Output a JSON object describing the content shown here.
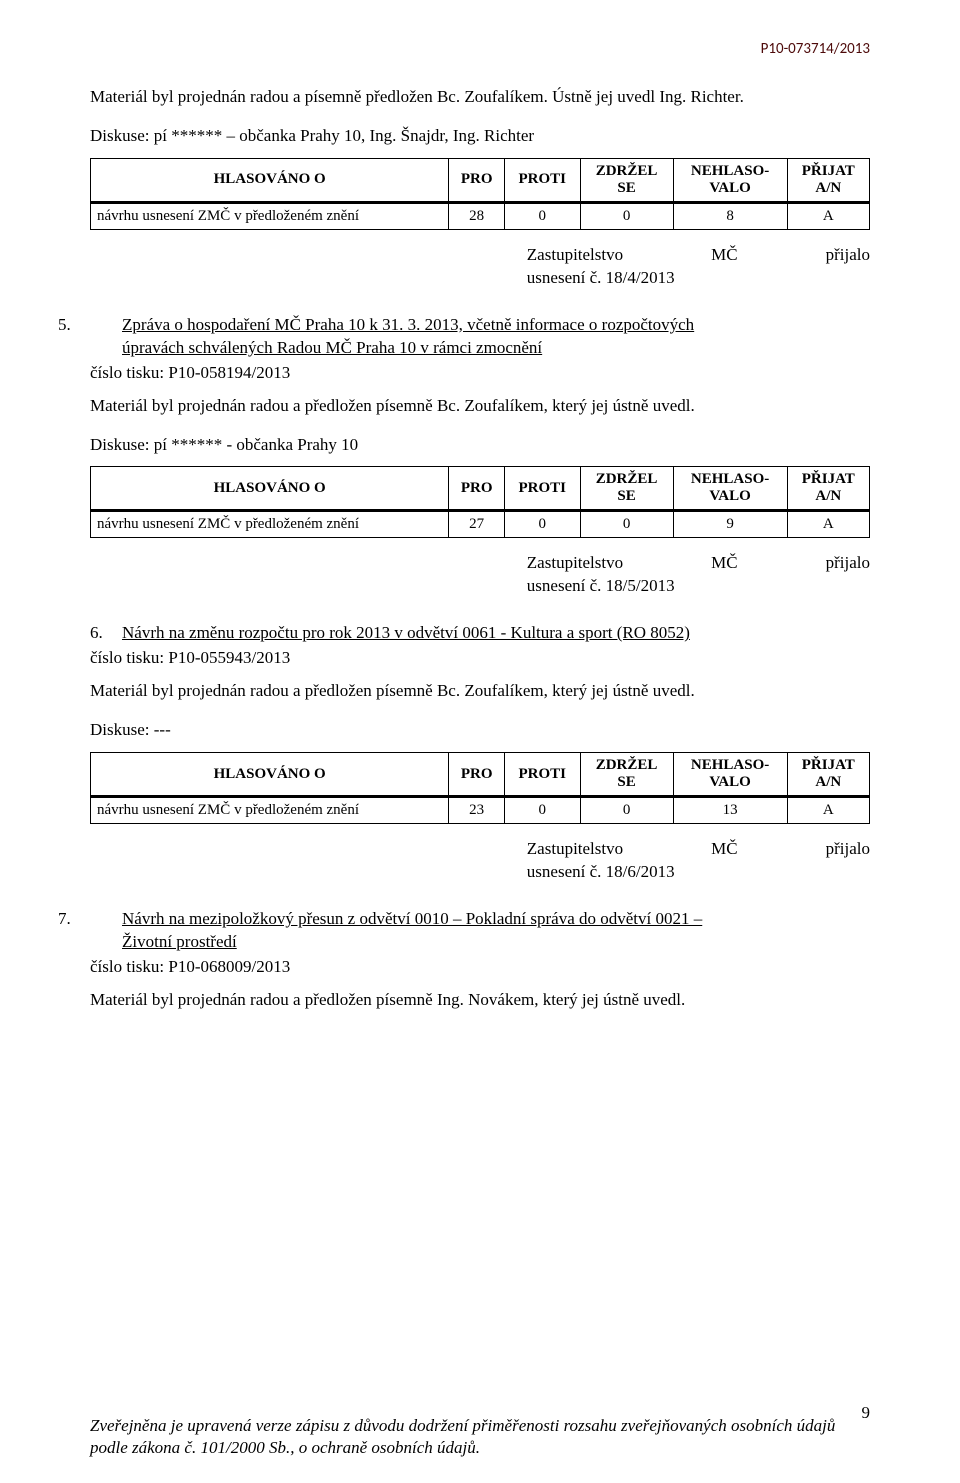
{
  "doc_id": "P10-073714/2013",
  "intro": {
    "p1": "Materiál byl projednán radou a písemně předložen Bc. Zoufalíkem. Ústně jej uvedl Ing. Richter.",
    "p2": "Diskuse: pí ****** – občanka Prahy 10, Ing. Šnajdr, Ing. Richter"
  },
  "columns": {
    "c1": "HLASOVÁNO O",
    "c2": "PRO",
    "c3": "PROTI",
    "c4a": "ZDRŽEL",
    "c4b": "SE",
    "c5a": "NEHLASO-",
    "c5b": "VALO",
    "c6a": "PŘIJAT",
    "c6b": "A/N"
  },
  "vote1": {
    "row_label": "návrhu usnesení ZMČ v předloženém znění",
    "pro": "28",
    "proti": "0",
    "zdrzel": "0",
    "nehlas": "8",
    "prijat": "A"
  },
  "adopted1": {
    "l1a": "Zastupitelstvo",
    "l1b": "MČ",
    "l1c": "přijalo",
    "l2": "usnesení č. 18/4/2013"
  },
  "item5": {
    "num": "5.",
    "title_a": "Zpráva o hospodaření MČ Praha 10 k 31. 3. 2013, včetně informace o rozpočtových",
    "title_b": "úpravách schválených Radou MČ Praha 10 v rámci zmocnění",
    "tisk": "číslo tisku: P10-058194/2013",
    "p1": "Materiál byl projednán radou a předložen písemně Bc. Zoufalíkem, který jej ústně uvedl.",
    "p2": "Diskuse: pí ****** - občanka Prahy 10"
  },
  "vote2": {
    "row_label": "návrhu usnesení ZMČ v předloženém znění",
    "pro": "27",
    "proti": "0",
    "zdrzel": "0",
    "nehlas": "9",
    "prijat": "A"
  },
  "adopted2": {
    "l1a": "Zastupitelstvo",
    "l1b": "MČ",
    "l1c": "přijalo",
    "l2": "usnesení č. 18/5/2013"
  },
  "item6": {
    "num": "6.",
    "title": "Návrh na změnu rozpočtu pro rok  2013 v odvětví 0061 - Kultura a sport (RO 8052)",
    "tisk": "číslo tisku: P10-055943/2013",
    "p1": "Materiál byl projednán radou a předložen písemně Bc. Zoufalíkem, který jej ústně uvedl.",
    "p2": "Diskuse: ---"
  },
  "vote3": {
    "row_label": "návrhu usnesení ZMČ v předloženém znění",
    "pro": "23",
    "proti": "0",
    "zdrzel": "0",
    "nehlas": "13",
    "prijat": "A"
  },
  "adopted3": {
    "l1a": "Zastupitelstvo",
    "l1b": "MČ",
    "l1c": "přijalo",
    "l2": "usnesení č. 18/6/2013"
  },
  "item7": {
    "num": "7.",
    "title_a": "Návrh na mezipoložkový přesun z odvětví 0010 – Pokladní správa do odvětví 0021 –",
    "title_b": "Životní prostředí",
    "tisk": "číslo tisku: P10-068009/2013",
    "p1": "Materiál byl projednán radou a předložen písemně Ing. Novákem, který jej ústně uvedl."
  },
  "page_number": "9",
  "footer": "Zveřejněna je upravená verze zápisu z důvodu dodržení přiměřenosti rozsahu zveřejňovaných osobních údajů podle zákona č. 101/2000 Sb., o ochraně osobních údajů."
}
